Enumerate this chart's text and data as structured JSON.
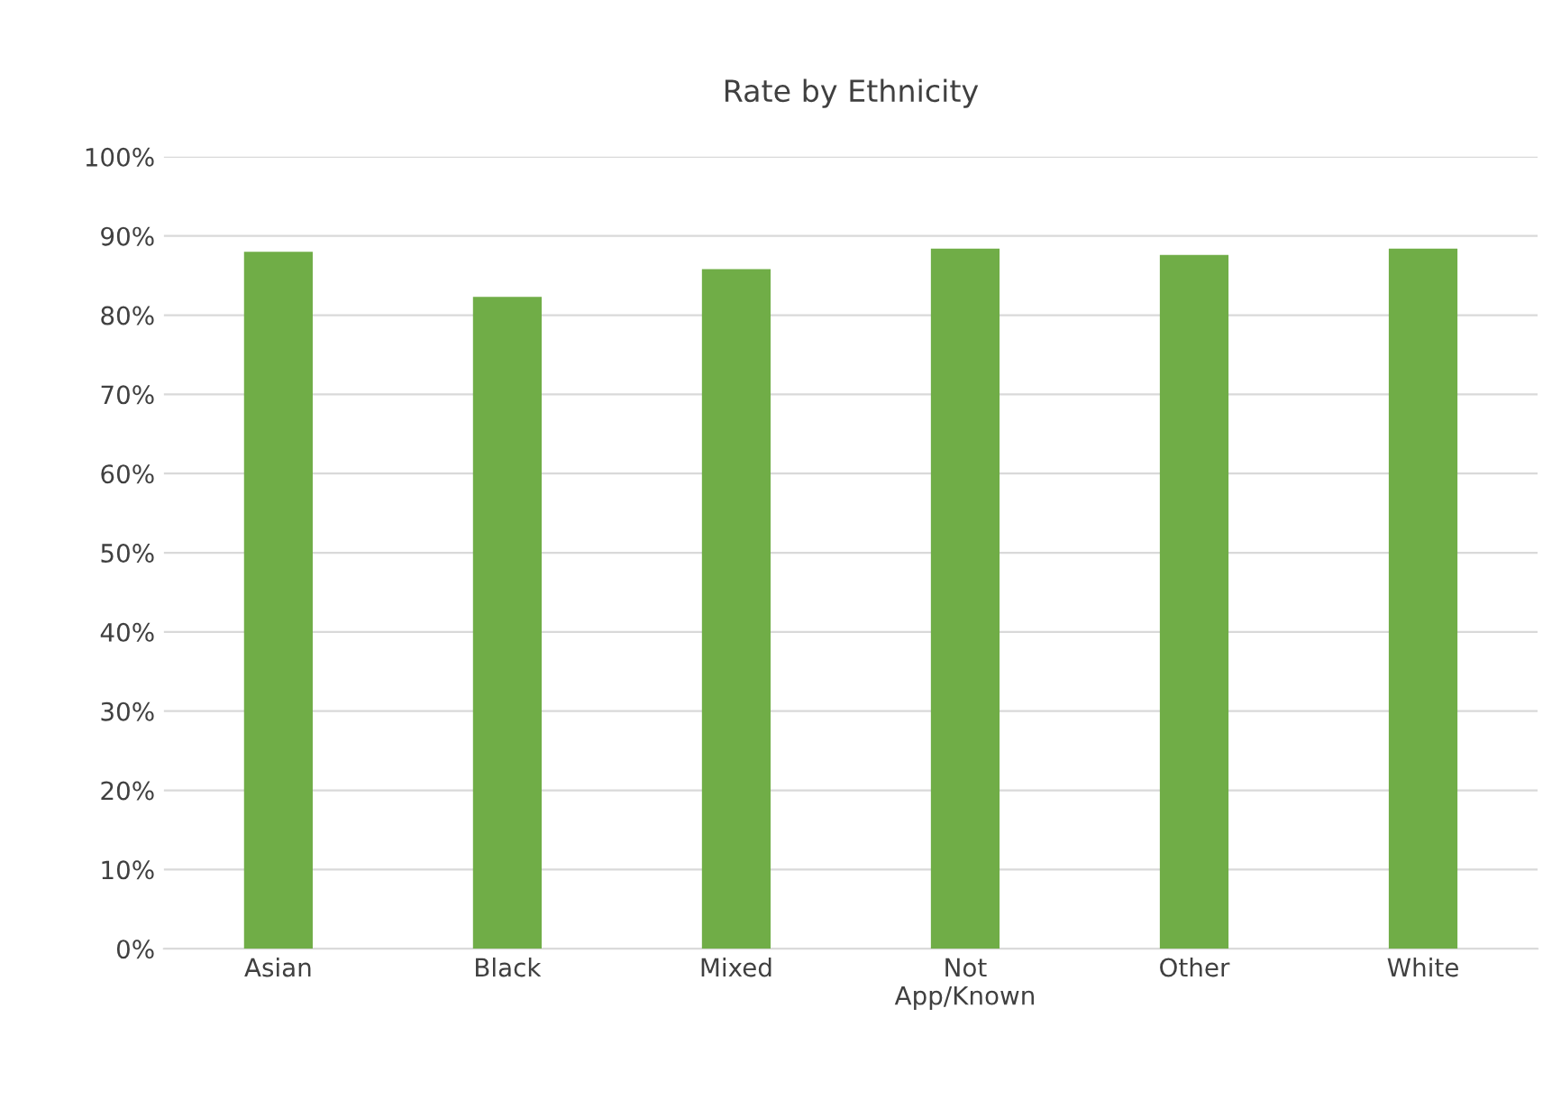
{
  "chart_data": {
    "type": "bar",
    "title": "Rate by Ethnicity",
    "categories": [
      "Asian",
      "Black",
      "Mixed",
      "Not\nApp/Known",
      "Other",
      "White"
    ],
    "values": [
      0.88,
      0.823,
      0.858,
      0.884,
      0.876,
      0.884
    ],
    "color": "#70ad47",
    "ylim": [
      0,
      1
    ],
    "yticks": [
      {
        "value": 0,
        "label": "0%"
      },
      {
        "value": 0.1,
        "label": "10%"
      },
      {
        "value": 0.2,
        "label": "20%"
      },
      {
        "value": 0.3,
        "label": "30%"
      },
      {
        "value": 0.4,
        "label": "40%"
      },
      {
        "value": 0.5,
        "label": "50%"
      },
      {
        "value": 0.6,
        "label": "60%"
      },
      {
        "value": 0.7,
        "label": "70%"
      },
      {
        "value": 0.8,
        "label": "80%"
      },
      {
        "value": 0.9,
        "label": "90%"
      },
      {
        "value": 1,
        "label": "100%"
      }
    ],
    "grid": "y"
  }
}
